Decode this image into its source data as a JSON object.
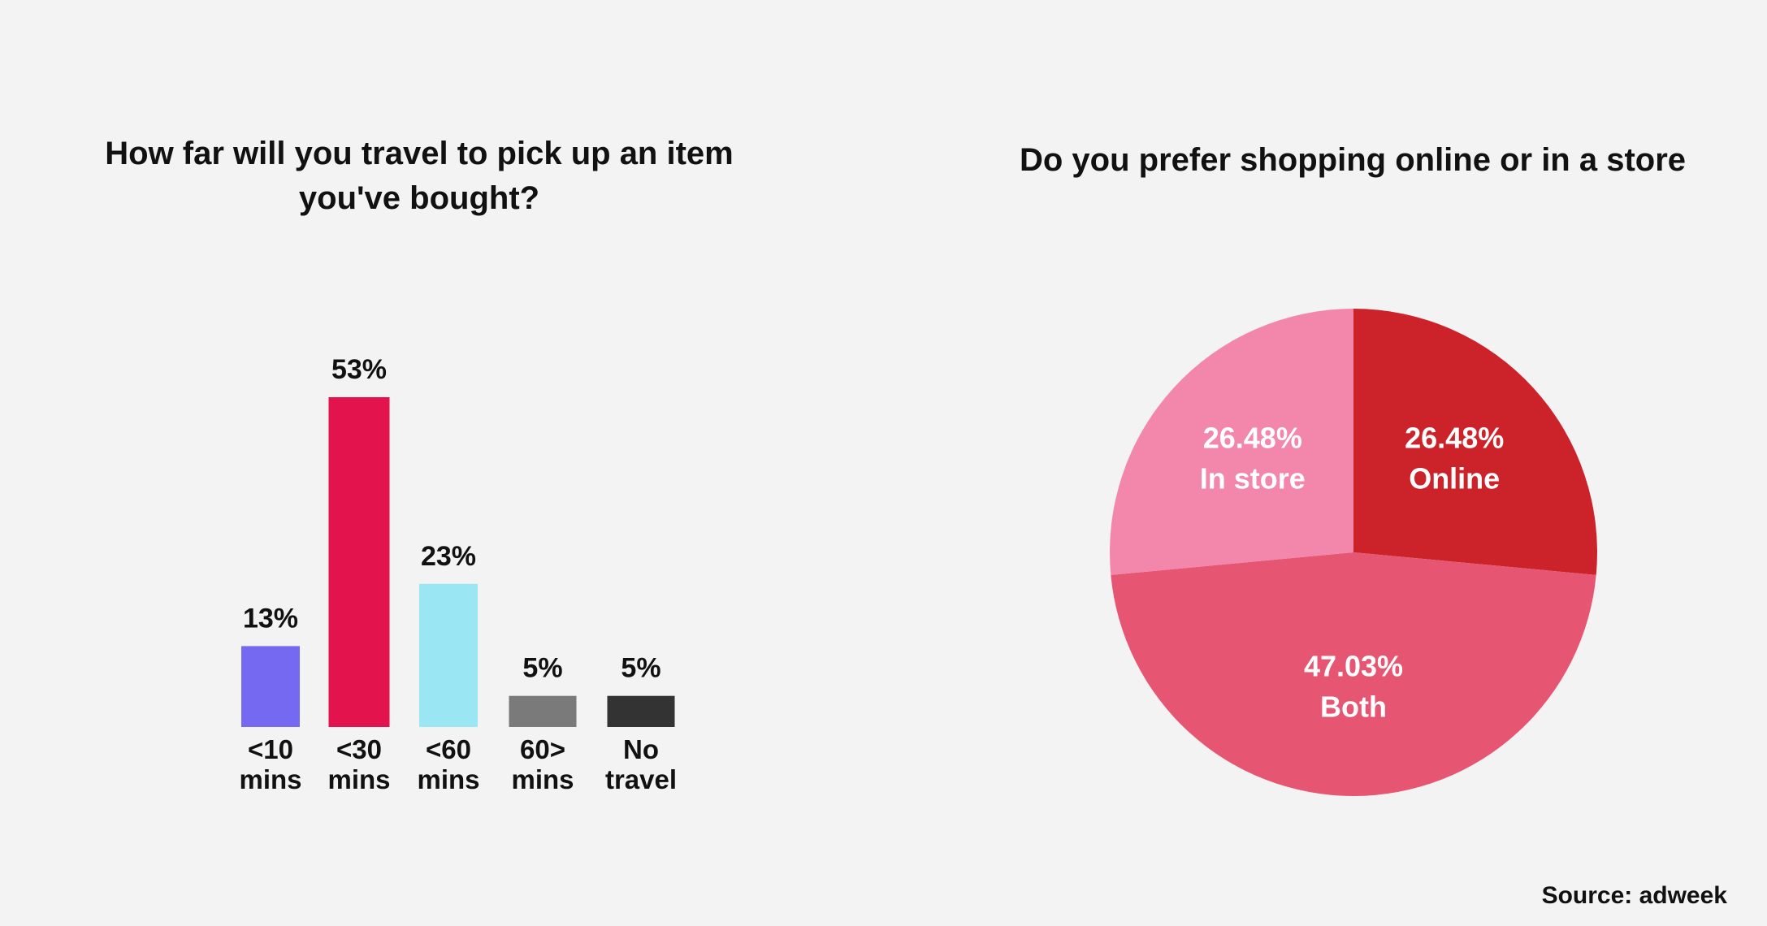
{
  "chart_data": [
    {
      "type": "bar",
      "title": "How far will you travel to pick up an item you've bought?",
      "categories": [
        "<10 mins",
        "<30 mins",
        "<60 mins",
        "60> mins",
        "No travel"
      ],
      "values": [
        13,
        53,
        23,
        5,
        5
      ],
      "value_labels": [
        "13%",
        "53%",
        "23%",
        "5%",
        "5%"
      ],
      "colors": [
        "#7469f0",
        "#e3134d",
        "#9be6f3",
        "#7a7a7a",
        "#333333"
      ]
    },
    {
      "type": "pie",
      "title": "Do you prefer shopping online or in a store",
      "categories": [
        "Online",
        "Both",
        "In store"
      ],
      "values": [
        26.48,
        47.03,
        26.48
      ],
      "value_labels": [
        "26.48%",
        "47.03%",
        "26.48%"
      ],
      "colors": [
        "#cc2229",
        "#e65571",
        "#f386ab"
      ]
    }
  ],
  "source": "Source: adweek"
}
